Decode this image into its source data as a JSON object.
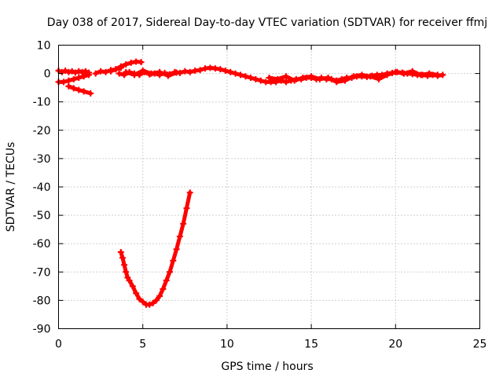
{
  "chart_data": {
    "type": "scatter",
    "title": "Day 038 of 2017, Sidereal Day-to-day VTEC variation (SDTVAR) for receiver ffmj",
    "xlabel": "GPS time / hours",
    "ylabel": "SDTVAR / TECUs",
    "xlim": [
      0,
      25
    ],
    "ylim": [
      -90,
      10
    ],
    "xticks": [
      0,
      5,
      10,
      15,
      20,
      25
    ],
    "yticks": [
      -90,
      -80,
      -70,
      -60,
      -50,
      -40,
      -30,
      -20,
      -10,
      0,
      10
    ],
    "grid": true,
    "legend": "none",
    "color": "#ff0000",
    "series": [
      {
        "segments": [
          {
            "x": [
              0.0,
              0.2,
              0.4,
              0.6,
              0.8,
              1.0,
              1.2,
              1.4,
              1.6,
              1.8
            ],
            "y": [
              1.0,
              0.5,
              1.0,
              0.5,
              0.8,
              0.3,
              0.8,
              0.5,
              0.8,
              0.3
            ]
          },
          {
            "x": [
              0.0,
              0.3,
              0.6,
              0.9,
              1.2,
              1.5,
              1.8
            ],
            "y": [
              -3.0,
              -3.0,
              -2.5,
              -2.0,
              -1.5,
              -1.0,
              -0.5
            ]
          },
          {
            "x": [
              0.6,
              0.9,
              1.2,
              1.5,
              1.9
            ],
            "y": [
              -4.5,
              -5.2,
              -5.8,
              -6.3,
              -7.0
            ]
          },
          {
            "x": [
              2.2,
              2.5,
              2.8,
              3.1,
              3.4,
              3.7
            ],
            "y": [
              0.0,
              0.8,
              0.5,
              1.2,
              1.5,
              2.0
            ]
          },
          {
            "x": [
              3.1,
              3.4,
              3.7,
              4.0,
              4.3,
              4.6,
              4.9
            ],
            "y": [
              0.8,
              1.5,
              2.5,
              3.2,
              3.8,
              4.2,
              4.0
            ]
          },
          {
            "x": [
              3.6,
              3.9,
              4.2,
              4.5,
              4.8,
              5.1,
              5.4,
              5.7,
              6.0,
              6.3,
              6.6,
              6.9,
              7.2,
              7.5,
              7.8,
              8.1,
              8.4,
              8.7,
              9.0,
              9.3,
              9.6,
              9.9,
              10.2,
              10.5,
              10.8,
              11.1,
              11.4,
              11.7,
              12.0,
              12.3,
              12.6,
              12.9,
              13.2,
              13.5,
              13.8,
              14.1,
              14.4,
              14.7,
              15.0,
              15.3,
              15.6,
              15.9,
              16.2,
              16.5,
              16.8,
              17.1,
              17.4,
              17.7,
              18.0,
              18.3,
              18.6,
              18.9,
              19.2,
              19.5,
              19.8,
              20.1,
              20.4,
              20.7,
              21.0,
              21.3,
              21.6,
              21.9,
              22.2,
              22.5,
              22.8
            ],
            "y": [
              0.0,
              -0.5,
              0.5,
              0.0,
              -0.5,
              0.5,
              -0.3,
              0.0,
              -0.5,
              0.2,
              -0.3,
              0.5,
              0.2,
              0.8,
              0.5,
              1.0,
              1.2,
              1.8,
              2.0,
              1.8,
              1.5,
              1.0,
              0.5,
              0.0,
              -0.5,
              -1.0,
              -1.5,
              -2.0,
              -2.5,
              -3.0,
              -3.0,
              -3.0,
              -2.5,
              -3.0,
              -2.5,
              -2.0,
              -2.0,
              -1.5,
              -1.5,
              -2.0,
              -1.5,
              -2.0,
              -2.0,
              -2.5,
              -2.0,
              -1.5,
              -1.5,
              -1.0,
              -1.0,
              -1.2,
              -0.8,
              -0.5,
              -0.5,
              0.0,
              0.2,
              0.5,
              0.3,
              0.0,
              -0.2,
              -0.5,
              -0.5,
              -0.8,
              -0.5,
              -0.8,
              -0.5
            ]
          },
          {
            "x": [
              4.0,
              4.5,
              5.0,
              5.5,
              6.0,
              6.5,
              7.0
            ],
            "y": [
              0.5,
              -0.5,
              1.0,
              0.0,
              0.5,
              -0.8,
              0.3
            ]
          },
          {
            "x": [
              12.5,
              13.0,
              13.5,
              14.0,
              14.5,
              15.0,
              15.5,
              16.0,
              16.5,
              17.0,
              17.5,
              18.0,
              18.5,
              19.0,
              19.5,
              20.0,
              20.5,
              21.0,
              21.5,
              22.0,
              22.5
            ],
            "y": [
              -1.5,
              -2.0,
              -1.0,
              -2.5,
              -1.5,
              -1.0,
              -2.0,
              -1.5,
              -3.0,
              -2.5,
              -1.0,
              -0.5,
              -1.0,
              -2.0,
              -0.5,
              0.5,
              0.0,
              0.8,
              -0.5,
              0.0,
              -0.5
            ]
          },
          {
            "x": [
              3.7,
              3.8,
              3.9,
              4.0,
              4.1,
              4.2,
              4.4,
              4.6,
              4.8,
              5.0,
              5.2,
              5.4,
              5.6,
              5.8,
              6.0,
              6.2,
              6.4,
              6.6,
              6.8,
              7.0,
              7.2,
              7.4,
              7.6,
              7.8
            ],
            "y": [
              -63.0,
              -65.0,
              -67.5,
              -70.0,
              -72.0,
              -73.0,
              -75.0,
              -77.5,
              -79.5,
              -80.5,
              -81.5,
              -81.5,
              -81.0,
              -80.0,
              -78.5,
              -76.0,
              -73.0,
              -70.0,
              -66.0,
              -62.0,
              -57.5,
              -53.0,
              -47.5,
              -42.0
            ]
          }
        ]
      }
    ]
  }
}
